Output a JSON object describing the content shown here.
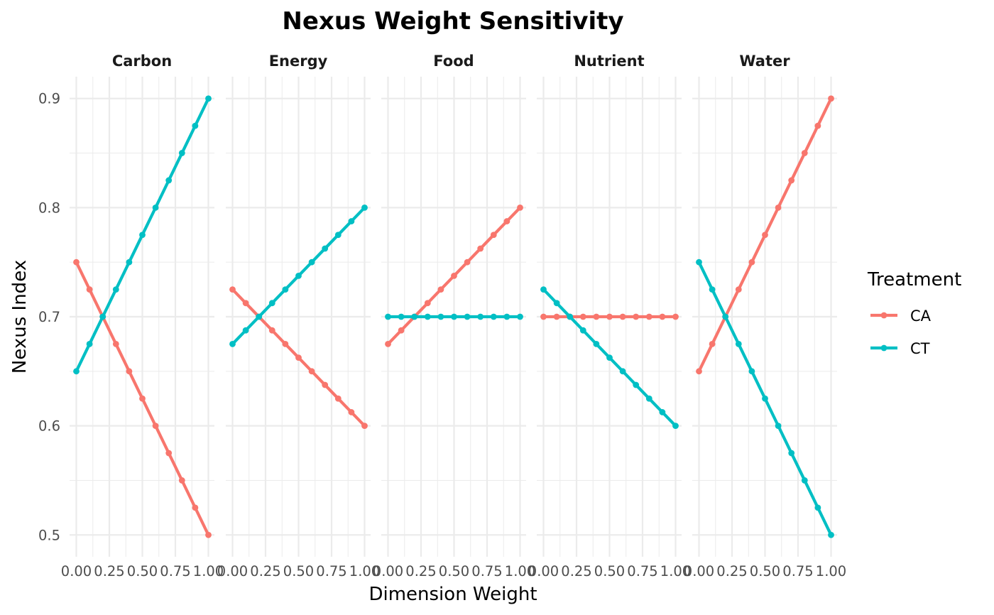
{
  "chart_data": {
    "type": "line",
    "title": "Nexus Weight Sensitivity",
    "xlabel": "Dimension Weight",
    "ylabel": "Nexus Index",
    "x": [
      0,
      0.1,
      0.2,
      0.3,
      0.4,
      0.5,
      0.6,
      0.7,
      0.8,
      0.9,
      1.0
    ],
    "xlim": [
      0,
      1
    ],
    "ylim": [
      0.48,
      0.92
    ],
    "x_ticks": [
      "0.00",
      "0.25",
      "0.50",
      "0.75",
      "1.00"
    ],
    "y_ticks": [
      "0.5",
      "0.6",
      "0.7",
      "0.8",
      "0.9"
    ],
    "grid": true,
    "legend": {
      "title": "Treatment",
      "position": "right",
      "entries": [
        "CA",
        "CT"
      ]
    },
    "colors": {
      "CA": "#F8766D",
      "CT": "#00BFC4",
      "grid": "#EBEBEB"
    },
    "facets": [
      {
        "name": "Carbon",
        "series": [
          {
            "name": "CA",
            "values": [
              0.75,
              0.725,
              0.7,
              0.675,
              0.65,
              0.625,
              0.6,
              0.575,
              0.55,
              0.525,
              0.5
            ]
          },
          {
            "name": "CT",
            "values": [
              0.65,
              0.675,
              0.7,
              0.725,
              0.75,
              0.775,
              0.8,
              0.825,
              0.85,
              0.875,
              0.9
            ]
          }
        ]
      },
      {
        "name": "Energy",
        "series": [
          {
            "name": "CA",
            "values": [
              0.725,
              0.7125,
              0.7,
              0.6875,
              0.675,
              0.6625,
              0.65,
              0.6375,
              0.625,
              0.6125,
              0.6
            ]
          },
          {
            "name": "CT",
            "values": [
              0.675,
              0.6875,
              0.7,
              0.7125,
              0.725,
              0.7375,
              0.75,
              0.7625,
              0.775,
              0.7875,
              0.8
            ]
          }
        ]
      },
      {
        "name": "Food",
        "series": [
          {
            "name": "CA",
            "values": [
              0.675,
              0.6875,
              0.7,
              0.7125,
              0.725,
              0.7375,
              0.75,
              0.7625,
              0.775,
              0.7875,
              0.8
            ]
          },
          {
            "name": "CT",
            "values": [
              0.7,
              0.7,
              0.7,
              0.7,
              0.7,
              0.7,
              0.7,
              0.7,
              0.7,
              0.7,
              0.7
            ]
          }
        ]
      },
      {
        "name": "Nutrient",
        "series": [
          {
            "name": "CA",
            "values": [
              0.7,
              0.7,
              0.7,
              0.7,
              0.7,
              0.7,
              0.7,
              0.7,
              0.7,
              0.7,
              0.7
            ]
          },
          {
            "name": "CT",
            "values": [
              0.725,
              0.7125,
              0.7,
              0.6875,
              0.675,
              0.6625,
              0.65,
              0.6375,
              0.625,
              0.6125,
              0.6
            ]
          }
        ]
      },
      {
        "name": "Water",
        "series": [
          {
            "name": "CA",
            "values": [
              0.65,
              0.675,
              0.7,
              0.725,
              0.75,
              0.775,
              0.8,
              0.825,
              0.85,
              0.875,
              0.9
            ]
          },
          {
            "name": "CT",
            "values": [
              0.75,
              0.725,
              0.7,
              0.675,
              0.65,
              0.625,
              0.6,
              0.575,
              0.55,
              0.525,
              0.5
            ]
          }
        ]
      }
    ]
  }
}
